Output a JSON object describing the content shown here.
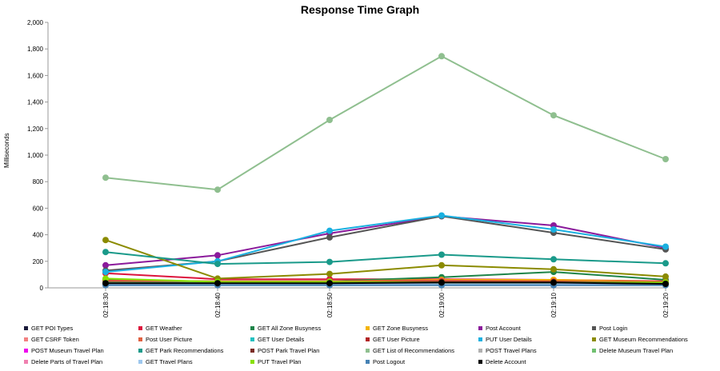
{
  "chart_data": {
    "type": "line",
    "title": "Response Time Graph",
    "xlabel": "",
    "ylabel": "Milliseconds",
    "x": [
      "02:18:30",
      "02:18:40",
      "02:18:50",
      "02:19:00",
      "02:19:10",
      "02:19:20"
    ],
    "ylim": [
      0,
      2000
    ],
    "yticks": [
      "0",
      "200",
      "400",
      "600",
      "800",
      "1,000",
      "1,200",
      "1,400",
      "1,600",
      "1,800",
      "2,000"
    ],
    "grid": false,
    "legend_position": "bottom",
    "series": [
      {
        "name": "GET POI Types",
        "color": "#1a1a3a",
        "values": [
          30,
          30,
          30,
          30,
          30,
          30
        ]
      },
      {
        "name": "GET Weather",
        "color": "#dc143c",
        "values": [
          110,
          65,
          65,
          65,
          60,
          50
        ]
      },
      {
        "name": "GET All Zone Busyness",
        "color": "#1e8449",
        "values": [
          60,
          40,
          50,
          80,
          120,
          60
        ]
      },
      {
        "name": "GET Zone Busyness",
        "color": "#f4b400",
        "values": [
          50,
          50,
          50,
          60,
          60,
          45
        ]
      },
      {
        "name": "Post Account",
        "color": "#8b1a9b",
        "values": [
          170,
          245,
          410,
          540,
          470,
          300
        ]
      },
      {
        "name": "Post Login",
        "color": "#555555",
        "values": [
          130,
          200,
          380,
          540,
          415,
          290
        ]
      },
      {
        "name": "GET CSRF Token",
        "color": "#f28080",
        "values": [
          40,
          40,
          40,
          40,
          40,
          40
        ]
      },
      {
        "name": "Post User Picture",
        "color": "#e06040",
        "values": [
          55,
          50,
          50,
          55,
          50,
          45
        ]
      },
      {
        "name": "GET User Details",
        "color": "#20c0c0",
        "values": [
          35,
          35,
          35,
          35,
          35,
          35
        ]
      },
      {
        "name": "GET User Picture",
        "color": "#b22222",
        "values": [
          45,
          40,
          45,
          45,
          45,
          40
        ]
      },
      {
        "name": "PUT User Details",
        "color": "#1ab0e0",
        "values": [
          120,
          200,
          430,
          545,
          440,
          310
        ]
      },
      {
        "name": "GET Museum Recommendations",
        "color": "#8b8b00",
        "values": [
          360,
          70,
          105,
          170,
          140,
          85
        ]
      },
      {
        "name": "POST Museum Travel Plan",
        "color": "#ee00ee",
        "values": [
          30,
          30,
          30,
          30,
          30,
          30
        ]
      },
      {
        "name": "GET Park Recommendations",
        "color": "#1a9a8a",
        "values": [
          270,
          180,
          195,
          250,
          215,
          185
        ]
      },
      {
        "name": "POST Park Travel Plan",
        "color": "#7b2d26",
        "values": [
          30,
          30,
          30,
          30,
          30,
          30
        ]
      },
      {
        "name": "GET List of Recommendations",
        "color": "#8fbf8f",
        "values": [
          830,
          740,
          1265,
          1745,
          1300,
          970
        ]
      },
      {
        "name": "POST Travel Plans",
        "color": "#b0b0b0",
        "values": [
          30,
          30,
          30,
          30,
          30,
          30
        ]
      },
      {
        "name": "Delete Museum Travel Plan",
        "color": "#70c070",
        "values": [
          40,
          40,
          40,
          40,
          40,
          40
        ]
      },
      {
        "name": "Delete Parts of Travel Plan",
        "color": "#f080b0",
        "values": [
          30,
          30,
          30,
          30,
          30,
          30
        ]
      },
      {
        "name": "GET Travel Plans",
        "color": "#9ec8ee",
        "values": [
          30,
          30,
          30,
          30,
          30,
          30
        ]
      },
      {
        "name": "PUT Travel Plan",
        "color": "#88e000",
        "values": [
          70,
          45,
          45,
          40,
          40,
          40
        ]
      },
      {
        "name": "Post Logout",
        "color": "#4682b4",
        "values": [
          20,
          20,
          20,
          20,
          20,
          20
        ]
      },
      {
        "name": "Delete Account",
        "color": "#000000",
        "values": [
          35,
          35,
          35,
          40,
          40,
          30
        ]
      }
    ]
  }
}
